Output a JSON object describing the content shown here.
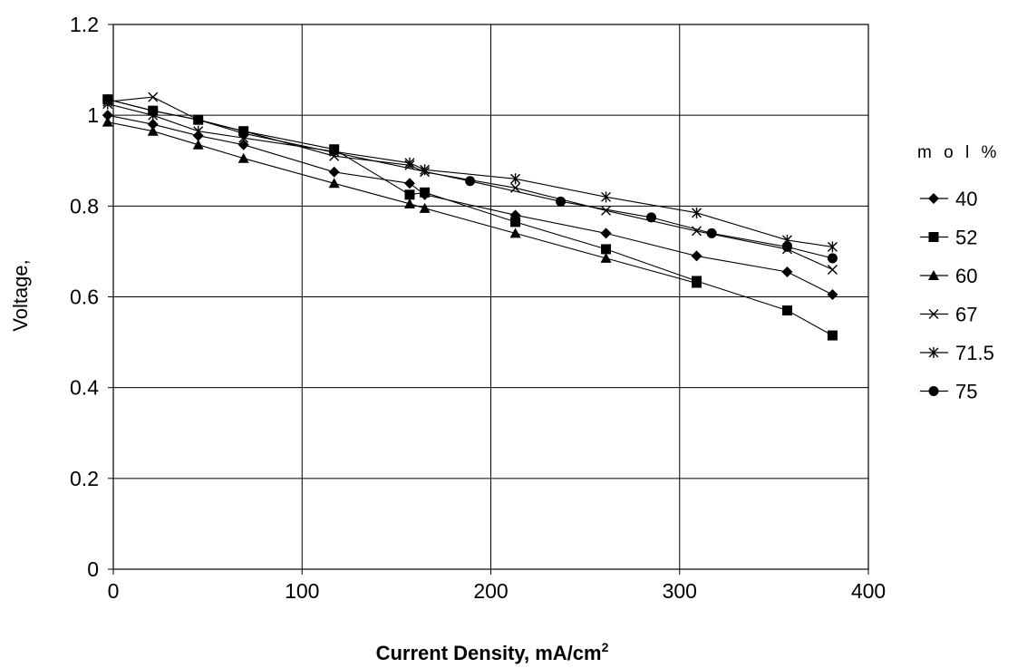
{
  "chart_data": {
    "type": "line",
    "title": "",
    "xlabel": "Current Density, mA/cm",
    "xlabel_sup": "2",
    "ylabel": "Voltage,",
    "xlim": [
      0,
      400
    ],
    "ylim": [
      0,
      1.2
    ],
    "xticks": [
      0,
      100,
      200,
      300,
      400
    ],
    "xtick_labels": [
      "0",
      "100",
      "200",
      "300",
      "400"
    ],
    "yticks": [
      0,
      0.2,
      0.4,
      0.6,
      0.8,
      1.0,
      1.2
    ],
    "ytick_labels": [
      "0",
      "0.2",
      "0.4",
      "0.6",
      "0.8",
      "1",
      "1.2"
    ],
    "grid": true,
    "legend_title": "m o l %",
    "legend_position": "right",
    "series": [
      {
        "name": "40",
        "marker": "diamond",
        "x": [
          -3,
          21,
          45,
          69,
          117,
          157,
          165,
          213,
          261,
          309,
          357,
          381
        ],
        "y": [
          1.0,
          0.98,
          0.955,
          0.935,
          0.875,
          0.85,
          0.825,
          0.78,
          0.74,
          0.69,
          0.655,
          0.605
        ]
      },
      {
        "name": "52",
        "marker": "square",
        "x": [
          -3,
          21,
          45,
          69,
          117,
          157,
          165,
          213,
          261,
          309,
          357,
          381
        ],
        "y": [
          1.035,
          1.01,
          0.99,
          0.965,
          0.925,
          0.825,
          0.83,
          0.765,
          0.705,
          0.635,
          0.57,
          0.515
        ]
      },
      {
        "name": "60",
        "marker": "triangle",
        "x": [
          -3,
          21,
          45,
          69,
          117,
          157,
          165,
          213,
          261,
          309
        ],
        "y": [
          0.985,
          0.965,
          0.935,
          0.905,
          0.85,
          0.805,
          0.795,
          0.74,
          0.685,
          0.63
        ]
      },
      {
        "name": "67",
        "marker": "x",
        "x": [
          -3,
          21,
          45,
          69,
          117,
          157,
          165,
          213,
          261,
          309,
          357,
          381
        ],
        "y": [
          1.03,
          1.04,
          0.99,
          0.965,
          0.91,
          0.89,
          0.875,
          0.84,
          0.79,
          0.745,
          0.705,
          0.66
        ]
      },
      {
        "name": "71.5",
        "marker": "star",
        "x": [
          -3,
          21,
          45,
          69,
          117,
          157,
          165,
          213,
          261,
          309,
          357,
          381
        ],
        "y": [
          1.025,
          1.0,
          0.965,
          0.95,
          0.92,
          0.895,
          0.88,
          0.86,
          0.82,
          0.785,
          0.725,
          0.71
        ]
      },
      {
        "name": "75",
        "marker": "circle",
        "x": [
          -3,
          21,
          45,
          69,
          189,
          237,
          285,
          317,
          357,
          381
        ],
        "y": [
          1.035,
          1.01,
          0.99,
          0.96,
          0.855,
          0.81,
          0.775,
          0.74,
          0.71,
          0.685
        ]
      }
    ]
  }
}
